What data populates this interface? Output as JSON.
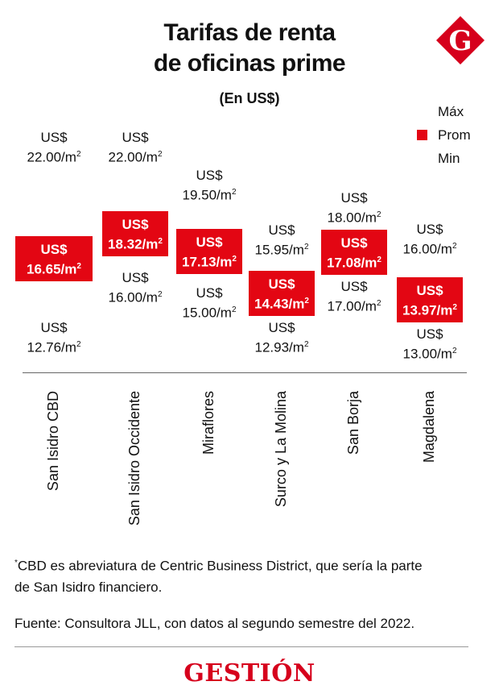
{
  "header": {
    "title_line1": "Tarifas de renta",
    "title_line2": "de oficinas prime",
    "subtitle": "(En US$)",
    "brand_letter": "G"
  },
  "legend": {
    "max_label": "Máx",
    "avg_label": "Prom",
    "min_label": "Min"
  },
  "colors": {
    "accent": "#e30613",
    "text": "#111111"
  },
  "chart_data": {
    "type": "range",
    "title": "Tarifas de renta de oficinas prime",
    "subtitle": "(En US$)",
    "currency": "US$",
    "unit": "/m",
    "unit_sup": "2",
    "categories": [
      "San Isidro CBD",
      "San Isidro Occidente",
      "Miraflores",
      "Surco y La Molina",
      "San Borja",
      "Magdalena"
    ],
    "series": [
      {
        "name": "Máx",
        "values": [
          22.0,
          22.0,
          19.5,
          15.95,
          18.0,
          16.0
        ]
      },
      {
        "name": "Prom",
        "values": [
          16.65,
          18.32,
          17.13,
          14.43,
          17.08,
          13.97
        ]
      },
      {
        "name": "Min",
        "values": [
          12.76,
          16.0,
          15.0,
          12.93,
          17.0,
          13.0
        ]
      }
    ],
    "value_labels": {
      "max": [
        "22.00",
        "22.00",
        "19.50",
        "15.95",
        "18.00",
        "16.00"
      ],
      "avg": [
        "16.65",
        "18.32",
        "17.13",
        "14.43",
        "17.08",
        "13.97"
      ],
      "min": [
        "12.76",
        "16.00",
        "15.00",
        "12.93",
        "17.00",
        "13.00"
      ]
    },
    "ylim": [
      12.0,
      22.5
    ],
    "legend_position": "top-right",
    "grid": false
  },
  "notes": {
    "footnote_mark": "*",
    "footnote_line1": "CBD es abreviatura de Centric Business District, que sería la parte",
    "footnote_line2": "de San Isidro financiero.",
    "source": "Fuente: Consultora JLL, con datos al segundo semestre del 2022."
  },
  "footer": {
    "brand": "GESTIÓN"
  }
}
